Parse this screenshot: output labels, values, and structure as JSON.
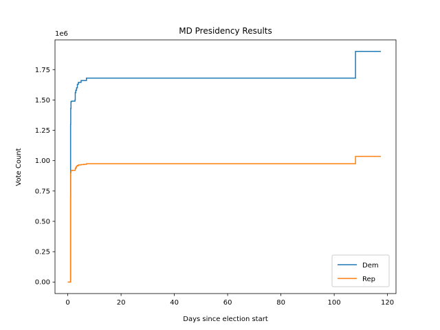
{
  "chart_data": {
    "type": "line",
    "title": "MD Presidency Results",
    "xlabel": "Days since election start",
    "ylabel": "Vote Count",
    "offset_text": "1e6",
    "xlim": [
      -4.8,
      123.2
    ],
    "ylim": [
      -0.095,
      1.995
    ],
    "x_ticks": [
      0,
      20,
      40,
      60,
      80,
      100,
      120
    ],
    "x_tick_labels": [
      "0",
      "20",
      "40",
      "60",
      "80",
      "100",
      "120"
    ],
    "y_ticks": [
      0,
      0.25,
      0.5,
      0.75,
      1.0,
      1.25,
      1.5,
      1.75
    ],
    "y_tick_labels": [
      "0.00",
      "0.25",
      "0.50",
      "0.75",
      "1.00",
      "1.25",
      "1.50",
      "1.75"
    ],
    "y_unit": "millions of votes (×1e6)",
    "grid": false,
    "legend_position": "lower right",
    "step": true,
    "series": [
      {
        "name": "Dem",
        "color": "#1f77b4",
        "x": [
          0.0,
          1.0,
          1.05,
          1.1,
          1.2,
          1.3,
          1.5,
          2.0,
          2.5,
          2.7,
          2.8,
          3.0,
          3.3,
          3.6,
          4.0,
          5.0,
          6.0,
          7.0,
          108.0,
          117.5
        ],
        "y": [
          0.0,
          0.0,
          1.3,
          1.43,
          1.485,
          1.488,
          1.49,
          1.49,
          1.49,
          1.5,
          1.56,
          1.58,
          1.6,
          1.63,
          1.645,
          1.66,
          1.66,
          1.68,
          1.9,
          1.9
        ]
      },
      {
        "name": "Rep",
        "color": "#ff7f0e",
        "x": [
          0.0,
          1.0,
          1.05,
          1.1,
          1.2,
          1.5,
          2.5,
          2.8,
          3.0,
          3.3,
          3.6,
          4.0,
          5.0,
          6.0,
          7.0,
          108.0,
          117.5
        ],
        "y": [
          0.0,
          0.0,
          0.7,
          0.9,
          0.918,
          0.92,
          0.92,
          0.935,
          0.945,
          0.955,
          0.96,
          0.965,
          0.968,
          0.97,
          0.975,
          1.035,
          1.035
        ]
      }
    ]
  }
}
